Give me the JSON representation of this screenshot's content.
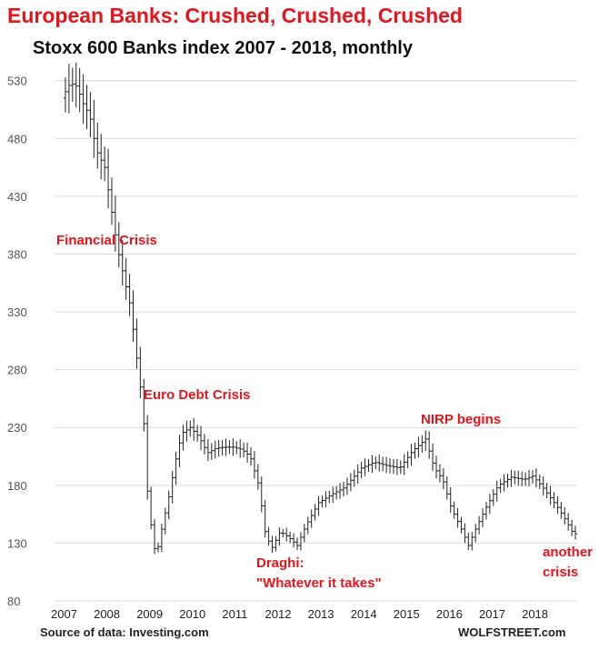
{
  "title": "European Banks: Crushed, Crushed, Crushed",
  "subtitle": "Stoxx 600 Banks index 2007 - 2018, monthly",
  "source": "Source of data: Investing.com",
  "brand": "WOLFSTREET.com",
  "colors": {
    "title": "#e8141b",
    "annotation": "#e8141b",
    "bars": "#222222",
    "grid": "#d9d9d9"
  },
  "chart_data": {
    "type": "ohlc",
    "title": "Stoxx 600 Banks index 2007 - 2018, monthly",
    "ylim": [
      80,
      540
    ],
    "xlim": [
      2007,
      2019
    ],
    "grid": true,
    "yticks": [
      80,
      130,
      180,
      230,
      280,
      330,
      380,
      430,
      480,
      530
    ],
    "xticks": [
      "2007",
      "2008",
      "2009",
      "2010",
      "2011",
      "2012",
      "2013",
      "2014",
      "2015",
      "2016",
      "2017",
      "2018"
    ],
    "annotations": [
      {
        "text": "Financial Crisis",
        "x": 2007.0,
        "y": 396
      },
      {
        "text": "Euro Debt Crisis",
        "x": 2008.8,
        "y": 257
      },
      {
        "text": "NIRP begins",
        "x": 2015.4,
        "y": 235
      },
      {
        "text": "Draghi:",
        "x": 2012.0,
        "y": 108
      },
      {
        "text": "\"Whatever it takes\"",
        "x": 2012.0,
        "y": 92
      },
      {
        "text": "another",
        "x": 2018.4,
        "y": 115
      },
      {
        "text": "crisis",
        "x": 2018.6,
        "y": 97
      }
    ],
    "anchors": [
      [
        2007.0,
        515
      ],
      [
        2007.2,
        528
      ],
      [
        2007.35,
        525
      ],
      [
        2007.5,
        510
      ],
      [
        2007.65,
        500
      ],
      [
        2007.8,
        470
      ],
      [
        2008.0,
        455
      ],
      [
        2008.15,
        420
      ],
      [
        2008.3,
        385
      ],
      [
        2008.45,
        360
      ],
      [
        2008.6,
        335
      ],
      [
        2008.75,
        290
      ],
      [
        2008.9,
        245
      ],
      [
        2009.0,
        175
      ],
      [
        2009.1,
        140
      ],
      [
        2009.2,
        118
      ],
      [
        2009.35,
        145
      ],
      [
        2009.5,
        170
      ],
      [
        2009.65,
        200
      ],
      [
        2009.8,
        225
      ],
      [
        2010.0,
        230
      ],
      [
        2010.2,
        222
      ],
      [
        2010.4,
        208
      ],
      [
        2010.6,
        212
      ],
      [
        2010.8,
        213
      ],
      [
        2011.0,
        213
      ],
      [
        2011.2,
        211
      ],
      [
        2011.4,
        205
      ],
      [
        2011.6,
        180
      ],
      [
        2011.75,
        140
      ],
      [
        2011.9,
        125
      ],
      [
        2012.1,
        140
      ],
      [
        2012.3,
        135
      ],
      [
        2012.5,
        128
      ],
      [
        2012.7,
        145
      ],
      [
        2013.0,
        165
      ],
      [
        2013.3,
        172
      ],
      [
        2013.6,
        178
      ],
      [
        2014.0,
        195
      ],
      [
        2014.3,
        200
      ],
      [
        2014.6,
        197
      ],
      [
        2014.9,
        195
      ],
      [
        2015.2,
        210
      ],
      [
        2015.5,
        220
      ],
      [
        2015.7,
        195
      ],
      [
        2015.9,
        185
      ],
      [
        2016.1,
        160
      ],
      [
        2016.3,
        145
      ],
      [
        2016.5,
        128
      ],
      [
        2016.7,
        145
      ],
      [
        2016.9,
        160
      ],
      [
        2017.2,
        180
      ],
      [
        2017.5,
        187
      ],
      [
        2017.8,
        185
      ],
      [
        2018.0,
        188
      ],
      [
        2018.2,
        180
      ],
      [
        2018.4,
        170
      ],
      [
        2018.6,
        160
      ],
      [
        2018.8,
        148
      ],
      [
        2018.95,
        138
      ]
    ]
  }
}
